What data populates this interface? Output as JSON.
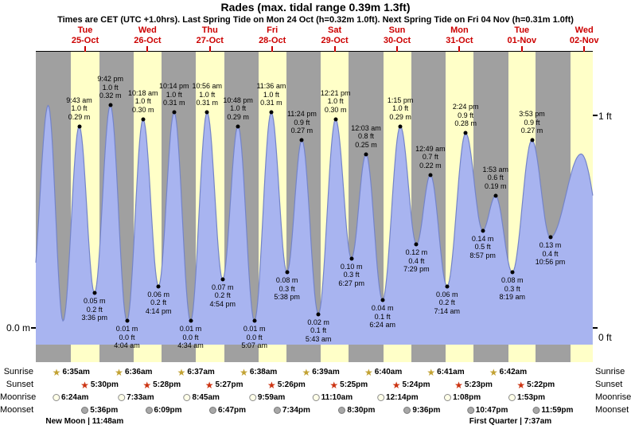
{
  "header": {
    "title": "Rades (max. tidal range 0.39m 1.3ft)",
    "subtitle": "Times are CET (UTC +1.0hrs). Last Spring Tide on Mon 24 Oct (h=0.32m 1.0ft). Next Spring Tide on Fri 04 Nov (h=0.31m 1.0ft)"
  },
  "axes": {
    "left_zero": "0.0 m",
    "right_top": "1 ft",
    "right_bottom": "0 ft"
  },
  "chart_data": {
    "type": "area",
    "title": "Rades (max. tidal range 0.39m 1.3ft)",
    "unit_left": "m",
    "unit_right": "ft",
    "ylim_m": [
      0,
      0.42
    ],
    "days": [
      {
        "weekday": "Tue",
        "date": "25-Oct"
      },
      {
        "weekday": "Wed",
        "date": "26-Oct"
      },
      {
        "weekday": "Thu",
        "date": "27-Oct"
      },
      {
        "weekday": "Fri",
        "date": "28-Oct"
      },
      {
        "weekday": "Sat",
        "date": "29-Oct"
      },
      {
        "weekday": "Sun",
        "date": "30-Oct"
      },
      {
        "weekday": "Mon",
        "date": "31-Oct"
      },
      {
        "weekday": "Tue",
        "date": "01-Nov"
      },
      {
        "weekday": "Wed",
        "date": "02-Nov"
      }
    ],
    "extremes": [
      {
        "day": 0,
        "type": "high",
        "time": "9:43 am",
        "ft": "1.0 ft",
        "m": "0.29 m"
      },
      {
        "day": 0,
        "type": "low",
        "time": "3:36 pm",
        "ft": "0.2 ft",
        "m": "0.05 m"
      },
      {
        "day": 0,
        "type": "high",
        "time": "9:42 pm",
        "ft": "1.0 ft",
        "m": "0.32 m"
      },
      {
        "day": 1,
        "type": "low",
        "time": "4:04 am",
        "ft": "0.0 ft",
        "m": "0.01 m"
      },
      {
        "day": 1,
        "type": "high",
        "time": "10:18 am",
        "ft": "1.0 ft",
        "m": "0.30 m"
      },
      {
        "day": 1,
        "type": "low",
        "time": "4:14 pm",
        "ft": "0.2 ft",
        "m": "0.06 m"
      },
      {
        "day": 1,
        "type": "high",
        "time": "10:14 pm",
        "ft": "1.0 ft",
        "m": "0.31 m"
      },
      {
        "day": 2,
        "type": "low",
        "time": "4:34 am",
        "ft": "0.0 ft",
        "m": "0.01 m"
      },
      {
        "day": 2,
        "type": "high",
        "time": "10:56 am",
        "ft": "1.0 ft",
        "m": "0.31 m"
      },
      {
        "day": 2,
        "type": "low",
        "time": "4:54 pm",
        "ft": "0.2 ft",
        "m": "0.07 m"
      },
      {
        "day": 2,
        "type": "high",
        "time": "10:48 pm",
        "ft": "1.0 ft",
        "m": "0.29 m"
      },
      {
        "day": 3,
        "type": "low",
        "time": "5:07 am",
        "ft": "0.0 ft",
        "m": "0.01 m"
      },
      {
        "day": 3,
        "type": "high",
        "time": "11:36 am",
        "ft": "1.0 ft",
        "m": "0.31 m"
      },
      {
        "day": 3,
        "type": "low",
        "time": "5:38 pm",
        "ft": "0.3 ft",
        "m": "0.08 m"
      },
      {
        "day": 3,
        "type": "high",
        "time": "11:24 pm",
        "ft": "0.9 ft",
        "m": "0.27 m"
      },
      {
        "day": 4,
        "type": "low",
        "time": "5:43 am",
        "ft": "0.1 ft",
        "m": "0.02 m"
      },
      {
        "day": 4,
        "type": "high",
        "time": "12:21 pm",
        "ft": "1.0 ft",
        "m": "0.30 m"
      },
      {
        "day": 4,
        "type": "low",
        "time": "6:27 pm",
        "ft": "0.3 ft",
        "m": "0.10 m"
      },
      {
        "day": 5,
        "type": "high",
        "time": "12:03 am",
        "ft": "0.8 ft",
        "m": "0.25 m"
      },
      {
        "day": 5,
        "type": "low",
        "time": "6:24 am",
        "ft": "0.1 ft",
        "m": "0.04 m"
      },
      {
        "day": 5,
        "type": "high",
        "time": "1:15 pm",
        "ft": "1.0 ft",
        "m": "0.29 m"
      },
      {
        "day": 5,
        "type": "low",
        "time": "7:29 pm",
        "ft": "0.4 ft",
        "m": "0.12 m"
      },
      {
        "day": 6,
        "type": "high",
        "time": "12:49 am",
        "ft": "0.7 ft",
        "m": "0.22 m"
      },
      {
        "day": 6,
        "type": "low",
        "time": "7:14 am",
        "ft": "0.2 ft",
        "m": "0.06 m"
      },
      {
        "day": 6,
        "type": "high",
        "time": "2:24 pm",
        "ft": "0.9 ft",
        "m": "0.28 m"
      },
      {
        "day": 6,
        "type": "low",
        "time": "8:57 pm",
        "ft": "0.5 ft",
        "m": "0.14 m"
      },
      {
        "day": 7,
        "type": "high",
        "time": "1:53 am",
        "ft": "0.6 ft",
        "m": "0.19 m"
      },
      {
        "day": 7,
        "type": "low",
        "time": "8:19 am",
        "ft": "0.3 ft",
        "m": "0.08 m"
      },
      {
        "day": 7,
        "type": "high",
        "time": "3:53 pm",
        "ft": "0.9 ft",
        "m": "0.27 m"
      },
      {
        "day": 7,
        "type": "low",
        "time": "10:56 pm",
        "ft": "0.4 ft",
        "m": "0.13 m"
      }
    ],
    "curve_padding": [
      {
        "day": -1,
        "h": 15.3,
        "m": 0.05
      },
      {
        "day": -1,
        "h": 21.8,
        "m": 0.32
      },
      {
        "day": 0,
        "h": 3.5,
        "m": 0.01
      },
      {
        "day": 8,
        "h": 10.8,
        "m": 0.25
      },
      {
        "day": 8,
        "h": 23.0,
        "m": 0.05
      }
    ],
    "edge_day_band": {
      "rise_h": 6.72
    },
    "colors": {
      "night_band": "#a0a0a0",
      "day_band": "#ffffc8",
      "curve_fill": "#a8b4f0",
      "curve_stroke": "#7484c8",
      "day_label": "#cc0000"
    }
  },
  "astro": {
    "rows": [
      {
        "label": "Sunrise",
        "icon": "sunrise-star",
        "times": [
          "6:35am",
          "6:36am",
          "6:37am",
          "6:38am",
          "6:39am",
          "6:40am",
          "6:41am",
          "6:42am"
        ]
      },
      {
        "label": "Sunset",
        "icon": "sunset-star",
        "times": [
          "5:30pm",
          "5:28pm",
          "5:27pm",
          "5:26pm",
          "5:25pm",
          "5:24pm",
          "5:23pm",
          "5:22pm"
        ]
      },
      {
        "label": "Moonrise",
        "icon": "moonrise-circle",
        "times": [
          "6:24am",
          "7:33am",
          "8:45am",
          "9:59am",
          "11:10am",
          "12:14pm",
          "1:08pm",
          "1:53pm"
        ]
      },
      {
        "label": "Moonset",
        "icon": "moonset-circle",
        "times": [
          "5:36pm",
          "6:09pm",
          "6:47pm",
          "7:34pm",
          "8:30pm",
          "9:36pm",
          "10:47pm",
          "11:59pm"
        ]
      }
    ],
    "phases": [
      {
        "label": "New Moon | 11:48am",
        "day": 0,
        "h": 11.8
      },
      {
        "label": "First Quarter | 7:37am",
        "day": 7,
        "h": 7.62
      }
    ]
  }
}
